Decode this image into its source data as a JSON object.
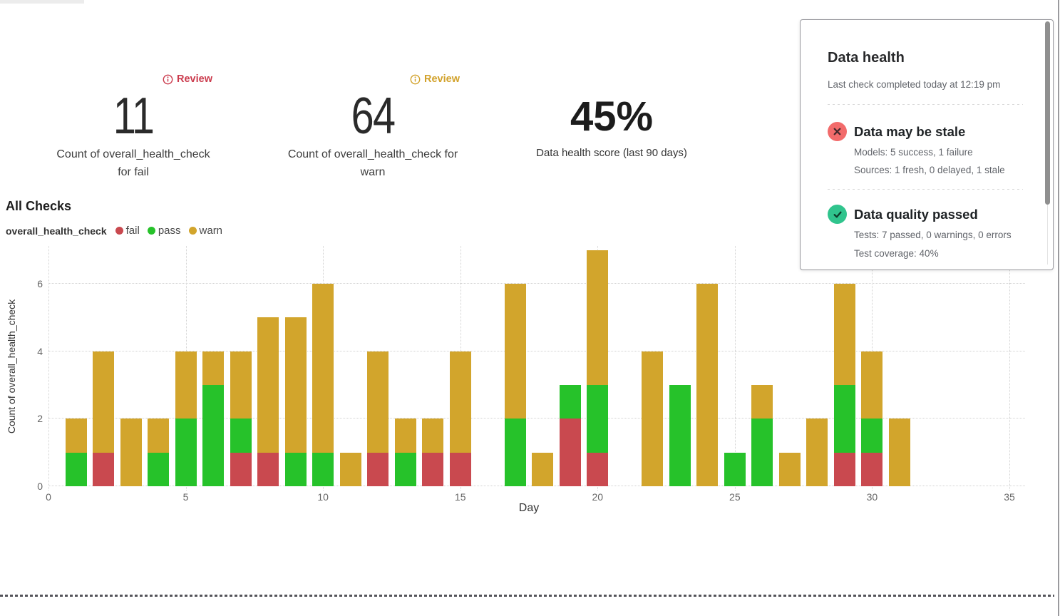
{
  "metrics": [
    {
      "review_label": "Review",
      "review_color": "#cb3b4d",
      "value": "11",
      "label_lines": [
        "Count of overall_health_check",
        "for fail"
      ]
    },
    {
      "review_label": "Review",
      "review_color": "#d2a22b",
      "value": "64",
      "label_lines": [
        "Count of overall_health_check for",
        "warn"
      ]
    },
    {
      "value": "45%",
      "label_lines": [
        "Data health score (last 90 days)"
      ]
    }
  ],
  "health_panel": {
    "title": "Data health",
    "subtitle": "Last check completed today at 12:19 pm",
    "sections": [
      {
        "title": "Data may be stale",
        "icon": "x-circle-icon",
        "icon_bg": "#f26b6b",
        "icon_glyph": "#45282c",
        "lines": [
          "Models: 5 success, 1 failure",
          "Sources: 1 fresh, 0 delayed, 1 stale"
        ]
      },
      {
        "title": "Data quality passed",
        "icon": "check-circle-icon",
        "icon_bg": "#30c48d",
        "icon_glyph": "#0e3d2c",
        "lines": [
          "Tests: 7 passed, 0 warnings, 0 errors",
          "Test coverage: 40%"
        ]
      }
    ]
  },
  "chart": {
    "title": "All Checks",
    "legend_title": "overall_health_check"
  },
  "chart_data": {
    "type": "bar",
    "stacked": true,
    "title": "All Checks",
    "xlabel": "Day",
    "ylabel": "Count of overall_health_check",
    "grid": true,
    "legend_position": "top-left",
    "x": [
      1,
      2,
      3,
      4,
      5,
      6,
      7,
      8,
      9,
      10,
      11,
      12,
      13,
      14,
      15,
      16,
      17,
      18,
      19,
      20,
      21,
      22,
      23,
      24,
      25,
      26,
      27,
      28,
      29,
      30,
      31
    ],
    "series": [
      {
        "name": "fail",
        "color": "#c9494f",
        "values": [
          0,
          1,
          0,
          0,
          0,
          0,
          1,
          1,
          0,
          0,
          0,
          1,
          0,
          1,
          1,
          0,
          0,
          0,
          2,
          1,
          0,
          0,
          0,
          0,
          0,
          0,
          0,
          0,
          1,
          1,
          0
        ]
      },
      {
        "name": "pass",
        "color": "#26c22a",
        "values": [
          1,
          0,
          0,
          1,
          2,
          3,
          1,
          0,
          1,
          1,
          0,
          0,
          1,
          0,
          0,
          0,
          2,
          0,
          1,
          2,
          0,
          0,
          3,
          0,
          1,
          2,
          0,
          0,
          2,
          1,
          0
        ]
      },
      {
        "name": "warn",
        "color": "#d2a52c",
        "values": [
          1,
          3,
          2,
          1,
          2,
          1,
          2,
          4,
          4,
          5,
          1,
          3,
          1,
          1,
          3,
          0,
          4,
          1,
          0,
          4,
          0,
          4,
          0,
          6,
          0,
          1,
          1,
          2,
          3,
          2,
          2
        ]
      }
    ],
    "totals": {
      "fail": 11,
      "warn": 64
    },
    "xticks": [
      0,
      5,
      10,
      15,
      20,
      25,
      30,
      35
    ],
    "yticks": [
      0,
      2,
      4,
      6
    ],
    "xlim": [
      0,
      35
    ],
    "ylim": [
      0,
      7.12
    ]
  }
}
